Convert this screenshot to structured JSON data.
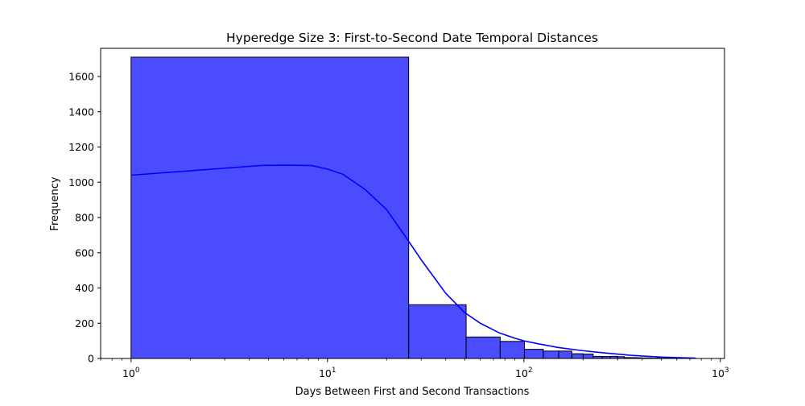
{
  "chart_data": {
    "type": "bar",
    "title": "Hyperedge Size 3: First-to-Second Date Temporal Distances",
    "xlabel": "Days Between First and Second Transactions",
    "ylabel": "Frequency",
    "xscale": "log",
    "xlim": [
      0.7,
      1050
    ],
    "ylim": [
      0,
      1760
    ],
    "grid": false,
    "bar_color": "#0000ff",
    "bar_opacity": 0.7,
    "bar_edge_color": "#000000",
    "kde_color": "#0000ff",
    "y_ticks": [
      0,
      200,
      400,
      600,
      800,
      1000,
      1200,
      1400,
      1600
    ],
    "y_tick_labels": [
      "0",
      "200",
      "400",
      "600",
      "800",
      "1000",
      "1200",
      "1400",
      "1600"
    ],
    "x_ticks": [
      {
        "value": 1,
        "base": "10",
        "exp": "0"
      },
      {
        "value": 10,
        "base": "10",
        "exp": "1"
      },
      {
        "value": 100,
        "base": "10",
        "exp": "2"
      },
      {
        "value": 1000,
        "base": "10",
        "exp": "3"
      }
    ],
    "bins": [
      {
        "x0": 1,
        "x1": 25.9,
        "count": 1710
      },
      {
        "x0": 25.9,
        "x1": 50.8,
        "count": 305
      },
      {
        "x0": 50.8,
        "x1": 75.7,
        "count": 122
      },
      {
        "x0": 75.7,
        "x1": 100.6,
        "count": 97
      },
      {
        "x0": 100.6,
        "x1": 125.5,
        "count": 52
      },
      {
        "x0": 125.5,
        "x1": 150.4,
        "count": 42
      },
      {
        "x0": 150.4,
        "x1": 175.3,
        "count": 42
      },
      {
        "x0": 175.3,
        "x1": 200.2,
        "count": 27
      },
      {
        "x0": 200.2,
        "x1": 225.1,
        "count": 25
      },
      {
        "x0": 225.1,
        "x1": 250.0,
        "count": 12
      },
      {
        "x0": 250.0,
        "x1": 274.9,
        "count": 11
      },
      {
        "x0": 274.9,
        "x1": 299.8,
        "count": 12
      },
      {
        "x0": 299.8,
        "x1": 324.7,
        "count": 10
      },
      {
        "x0": 324.7,
        "x1": 349.6,
        "count": 5
      },
      {
        "x0": 349.6,
        "x1": 374.5,
        "count": 5
      },
      {
        "x0": 374.5,
        "x1": 399.4,
        "count": 4
      },
      {
        "x0": 399.4,
        "x1": 424.3,
        "count": 3
      },
      {
        "x0": 424.3,
        "x1": 449.2,
        "count": 3
      },
      {
        "x0": 449.2,
        "x1": 474.1,
        "count": 2
      },
      {
        "x0": 474.1,
        "x1": 499.0,
        "count": 4
      },
      {
        "x0": 499.0,
        "x1": 523.9,
        "count": 2
      },
      {
        "x0": 523.9,
        "x1": 548.8,
        "count": 2
      },
      {
        "x0": 548.8,
        "x1": 573.7,
        "count": 1
      },
      {
        "x0": 573.7,
        "x1": 598.6,
        "count": 1
      },
      {
        "x0": 598.6,
        "x1": 623.5,
        "count": 1
      },
      {
        "x0": 623.5,
        "x1": 648.4,
        "count": 1
      },
      {
        "x0": 648.4,
        "x1": 673.3,
        "count": 1
      },
      {
        "x0": 673.3,
        "x1": 698.2,
        "count": 1
      },
      {
        "x0": 698.2,
        "x1": 723.1,
        "count": 1
      },
      {
        "x0": 723.1,
        "x1": 748.0,
        "count": 1
      }
    ],
    "kde": [
      [
        1,
        1040
      ],
      [
        1.5,
        1055
      ],
      [
        2,
        1065
      ],
      [
        3,
        1080
      ],
      [
        4.6,
        1095
      ],
      [
        6,
        1097
      ],
      [
        8.3,
        1095
      ],
      [
        10,
        1075
      ],
      [
        12,
        1045
      ],
      [
        15.5,
        960
      ],
      [
        20,
        845
      ],
      [
        25,
        690
      ],
      [
        30,
        560
      ],
      [
        40,
        370
      ],
      [
        50,
        260
      ],
      [
        60,
        200
      ],
      [
        75,
        145
      ],
      [
        90,
        115
      ],
      [
        100,
        100
      ],
      [
        120,
        82
      ],
      [
        150,
        62
      ],
      [
        200,
        44
      ],
      [
        250,
        33
      ],
      [
        300,
        25
      ],
      [
        350,
        18
      ],
      [
        400,
        14
      ],
      [
        500,
        8
      ],
      [
        600,
        5
      ],
      [
        750,
        2
      ]
    ]
  }
}
